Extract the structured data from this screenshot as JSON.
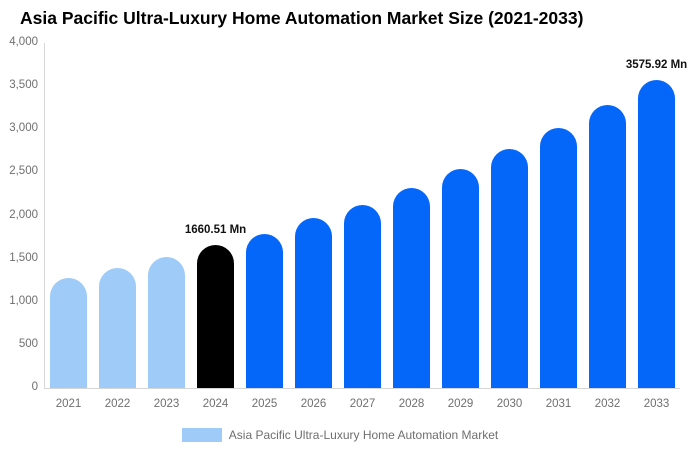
{
  "title": "Asia Pacific Ultra-Luxury Home Automation Market Size (2021-2033)",
  "colors": {
    "bar_light_blue": "#9ecbf7",
    "bar_highlight_black": "#000000",
    "bar_blue": "#0567fa",
    "axis_line": "#d6d6d6",
    "tick_text": "#6f6f6f",
    "data_label_text": "#111111",
    "title_text": "#000000"
  },
  "chart_data": {
    "type": "bar",
    "title": "Asia Pacific Ultra-Luxury Home Automation Market Size (2021-2033)",
    "xlabel": "",
    "ylabel": "",
    "ylim": [
      0,
      4000
    ],
    "grid": false,
    "categories": [
      "2021",
      "2022",
      "2023",
      "2024",
      "2025",
      "2026",
      "2027",
      "2028",
      "2029",
      "2030",
      "2031",
      "2032",
      "2033"
    ],
    "values": [
      1270,
      1390,
      1515,
      1660.51,
      1790,
      1970,
      2120,
      2315,
      2540,
      2770,
      3020,
      3285,
      3575.92
    ],
    "bar_colors": [
      "#9ecbf7",
      "#9ecbf7",
      "#9ecbf7",
      "#000000",
      "#0567fa",
      "#0567fa",
      "#0567fa",
      "#0567fa",
      "#0567fa",
      "#0567fa",
      "#0567fa",
      "#0567fa",
      "#0567fa"
    ],
    "yticks": [
      {
        "label": "4,000",
        "value": 4000
      },
      {
        "label": "3,500",
        "value": 3500
      },
      {
        "label": "3,000",
        "value": 3000
      },
      {
        "label": "2,500",
        "value": 2500
      },
      {
        "label": "2,000",
        "value": 2000
      },
      {
        "label": "1,500",
        "value": 1500
      },
      {
        "label": "1,000",
        "value": 1000
      },
      {
        "label": "500",
        "value": 500
      },
      {
        "label": "0",
        "value": 0
      }
    ],
    "annotations": [
      {
        "category": "2024",
        "text": "1660.51 Mn"
      },
      {
        "category": "2033",
        "text": "3575.92 Mn"
      }
    ],
    "legend": {
      "label": "Asia Pacific Ultra-Luxury Home Automation Market",
      "swatch_color": "#9ecbf7",
      "position": "bottom"
    }
  }
}
